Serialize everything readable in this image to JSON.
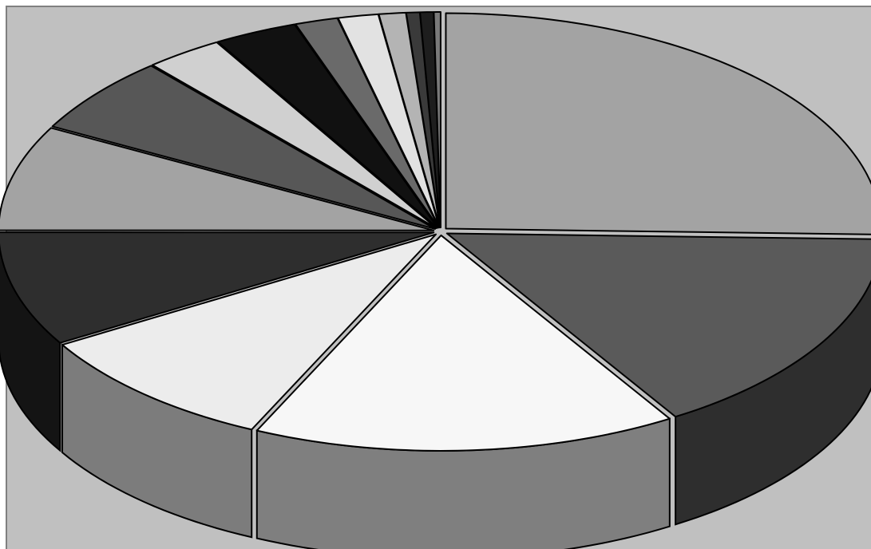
{
  "chart_data": {
    "type": "pie",
    "style": "3d-exploded",
    "title": "",
    "legend": "none",
    "data_labels": "none",
    "background_color": "#c0c0c0",
    "border_color": "#808080",
    "outline_color": "#000000",
    "slices": [
      {
        "value": 25.5,
        "top_color": "#a3a3a3",
        "side_color": "#6a6a6a"
      },
      {
        "value": 15.8,
        "top_color": "#5a5a5a",
        "side_color": "#2e2e2e"
      },
      {
        "value": 15.8,
        "top_color": "#f7f7f7",
        "side_color": "#7f7f7f"
      },
      {
        "value": 9.5,
        "top_color": "#ececec",
        "side_color": "#7c7c7c"
      },
      {
        "value": 8.6,
        "top_color": "#2e2e2e",
        "side_color": "#141414"
      },
      {
        "value": 7.9,
        "top_color": "#a3a3a3",
        "side_color": "#6a6a6a"
      },
      {
        "value": 5.8,
        "top_color": "#575757",
        "side_color": "#2e2e2e"
      },
      {
        "value": 2.9,
        "top_color": "#d0d0d0",
        "side_color": "#8a8a8a"
      },
      {
        "value": 3.1,
        "top_color": "#111111",
        "side_color": "#080808"
      },
      {
        "value": 1.6,
        "top_color": "#6a6a6a",
        "side_color": "#3c3c3c"
      },
      {
        "value": 1.5,
        "top_color": "#e2e2e2",
        "side_color": "#8a8a8a"
      },
      {
        "value": 1.0,
        "top_color": "#b4b4b4",
        "side_color": "#6c6c6c"
      },
      {
        "value": 0.5,
        "top_color": "#3a3a3a",
        "side_color": "#1c1c1c"
      },
      {
        "value": 0.5,
        "top_color": "#1e1e1e",
        "side_color": "#0c0c0c"
      },
      {
        "value": 0.25,
        "top_color": "#7a7a7a",
        "side_color": "#444444"
      }
    ]
  }
}
